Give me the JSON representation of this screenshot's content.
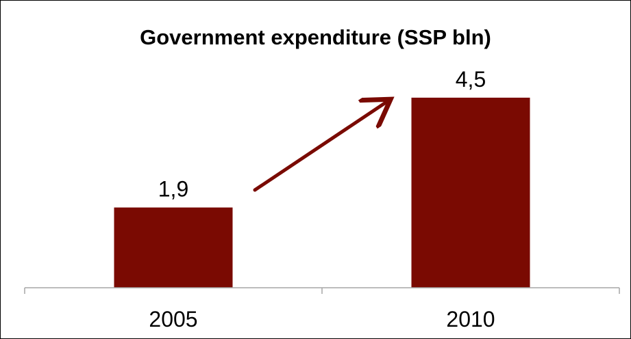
{
  "chart_data": {
    "type": "bar",
    "title": "Government expenditure (SSP bln)",
    "categories": [
      "2005",
      "2010"
    ],
    "values": [
      1.9,
      4.5
    ],
    "value_labels": [
      "1,9",
      "4,5"
    ],
    "xlabel": "",
    "ylabel": "",
    "ylim": [
      0,
      5
    ],
    "grid": false,
    "legend": "none",
    "annotation": "upward-arrow"
  },
  "colors": {
    "bar": "#7a0a02",
    "arrow": "#7a0a02",
    "axis": "#a6a6a6"
  }
}
